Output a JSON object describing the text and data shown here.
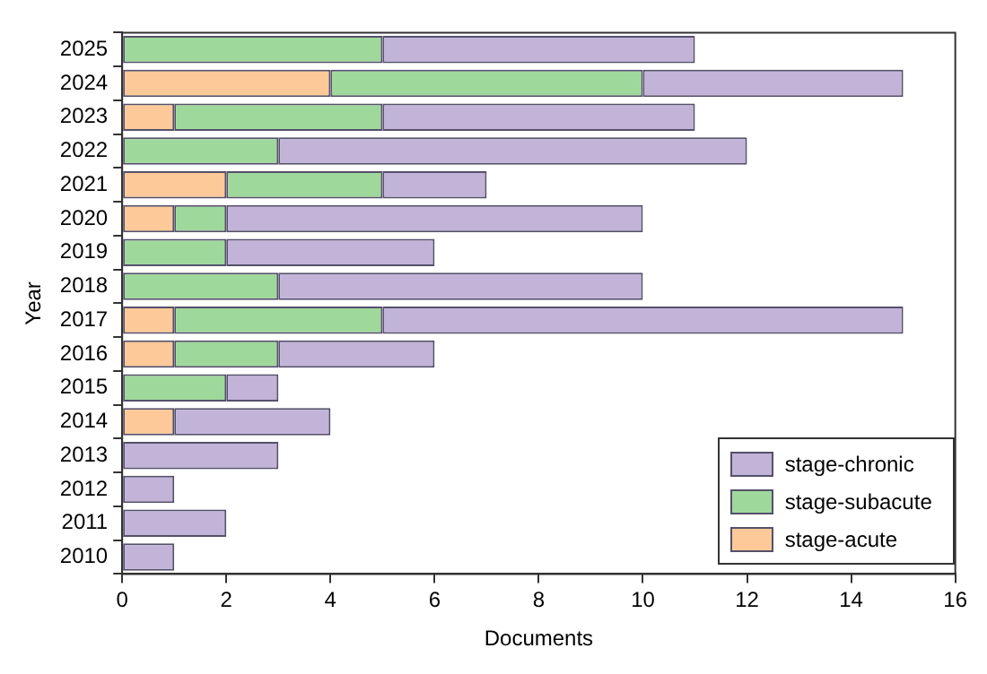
{
  "chart_data": {
    "type": "bar",
    "orientation": "horizontal",
    "stacked": true,
    "xlabel": "Documents",
    "ylabel": "Year",
    "categories": [
      "2025",
      "2024",
      "2023",
      "2022",
      "2021",
      "2020",
      "2019",
      "2018",
      "2017",
      "2016",
      "2015",
      "2014",
      "2013",
      "2012",
      "2011",
      "2010"
    ],
    "series": [
      {
        "name": "stage-acute",
        "color": "#fdc998",
        "values": [
          0,
          4,
          1,
          0,
          2,
          1,
          0,
          0,
          1,
          1,
          0,
          1,
          0,
          0,
          0,
          0
        ]
      },
      {
        "name": "stage-subacute",
        "color": "#9fd89b",
        "values": [
          5,
          6,
          4,
          3,
          3,
          1,
          2,
          3,
          4,
          2,
          2,
          0,
          0,
          0,
          0,
          0
        ]
      },
      {
        "name": "stage-chronic",
        "color": "#c2b3d8",
        "values": [
          6,
          5,
          6,
          9,
          2,
          8,
          4,
          7,
          10,
          3,
          1,
          3,
          3,
          1,
          2,
          1
        ]
      }
    ],
    "xlim": [
      0,
      16
    ],
    "xticks": [
      0,
      2,
      4,
      6,
      8,
      10,
      12,
      14,
      16
    ],
    "legend": "bottom right"
  }
}
